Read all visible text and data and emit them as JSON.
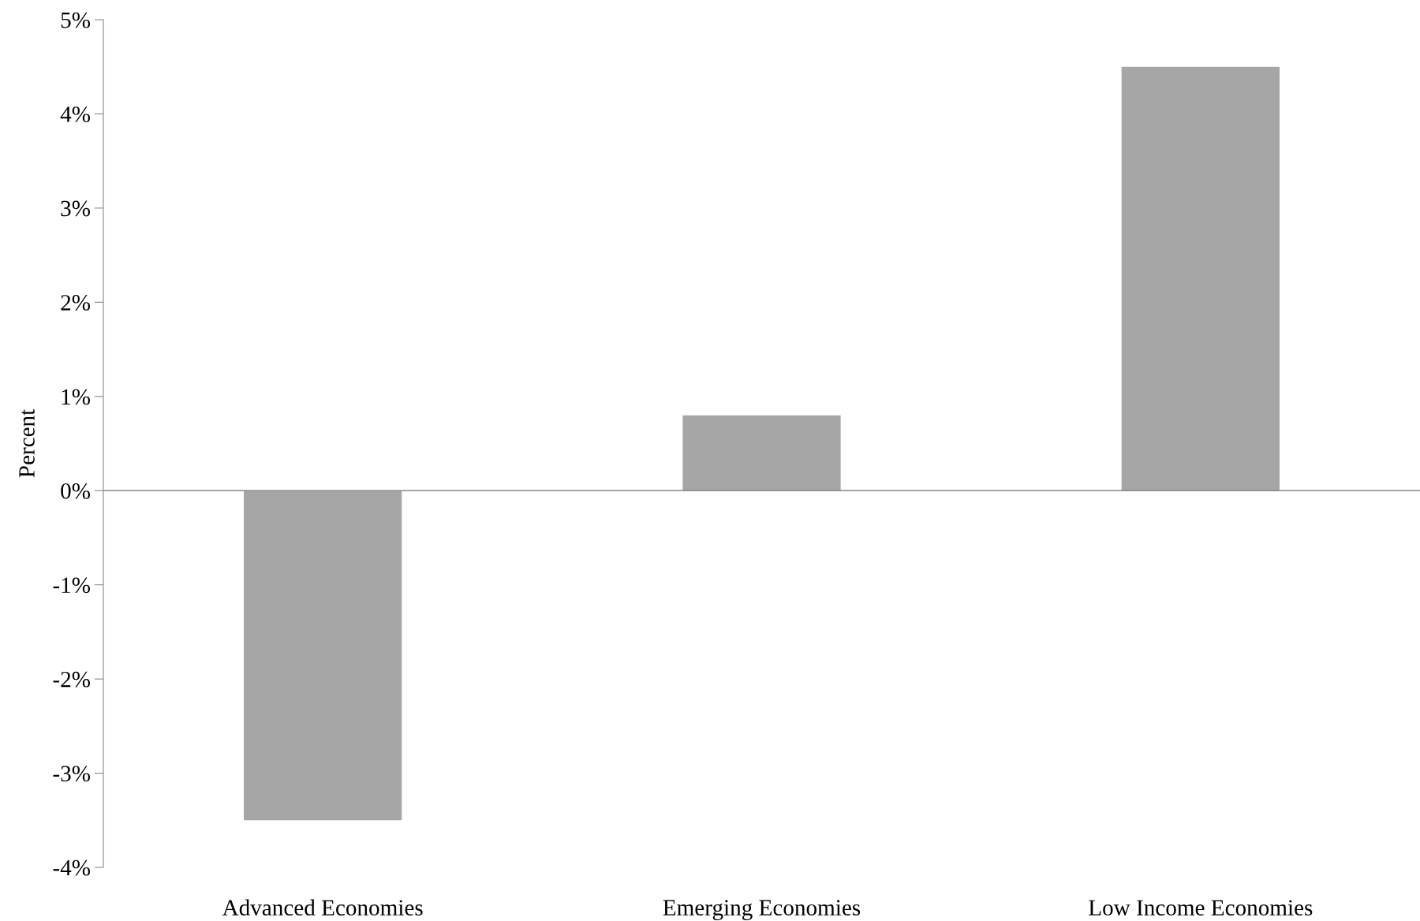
{
  "chart_data": {
    "type": "bar",
    "ylabel": "Percent",
    "categories": [
      "Advanced Economies",
      "Emerging Economies",
      "Low Income Economies"
    ],
    "values": [
      -3.5,
      0.8,
      4.5
    ],
    "color": "#a6a6a6",
    "ylim": [
      -4,
      5
    ],
    "yticks": [
      {
        "value": -4,
        "label": "-4%"
      },
      {
        "value": -3,
        "label": "-3%"
      },
      {
        "value": -2,
        "label": "-2%"
      },
      {
        "value": -1,
        "label": "-1%"
      },
      {
        "value": 0,
        "label": "0%"
      },
      {
        "value": 1,
        "label": "1%"
      },
      {
        "value": 2,
        "label": "2%"
      },
      {
        "value": 3,
        "label": "3%"
      },
      {
        "value": 4,
        "label": "4%"
      },
      {
        "value": 5,
        "label": "5%"
      }
    ],
    "ref_lines": [
      {
        "axis": "y",
        "value": 0,
        "color": "#888888"
      }
    ]
  }
}
